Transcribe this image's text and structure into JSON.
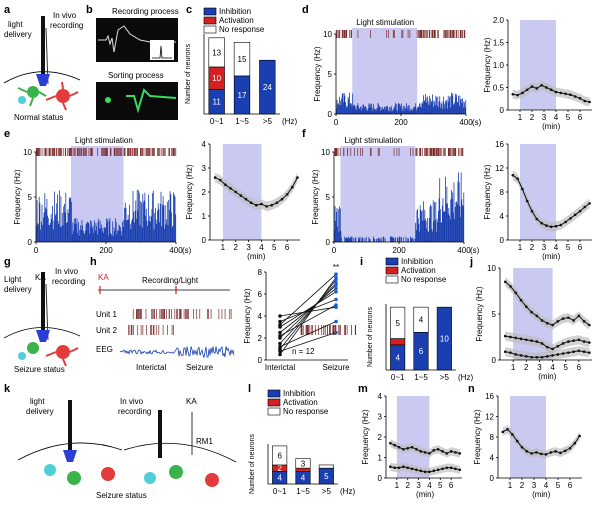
{
  "labels": {
    "panels": [
      "a",
      "b",
      "c",
      "d",
      "e",
      "f",
      "g",
      "h",
      "i",
      "j",
      "k",
      "l",
      "m",
      "n"
    ],
    "light_delivery": "light delivery",
    "light_delivery_g": "Light delivery",
    "in_vivo_recording": "In vivo recording",
    "in_vivo_recording_k": "In vivo recording",
    "normal_status": "Normal status",
    "seizure_status": "Seizure status",
    "ka": "KA",
    "rm1": "RM1",
    "recording_process": "Recording process",
    "sorting_process": "Sorting process",
    "light_stimulation": "Light stimulation",
    "recording_light": "Recording/Light",
    "unit1": "Unit 1",
    "unit2": "Unit 2",
    "eeg": "EEG",
    "interictal": "Interictal",
    "seizure": "Seizure",
    "n12": "n = 12",
    "sig": "**"
  },
  "colors": {
    "inhibition": "#1a3fb0",
    "activation": "#d32020",
    "no_response": "#ffffff",
    "light": "#c9c9f2",
    "trace": "#1a1a1a",
    "raster": "#7a2a2a",
    "bars": "#1a3fb0"
  },
  "chart_data": [
    {
      "panel": "c",
      "type": "bar",
      "stacked": true,
      "categories": [
        "0~1",
        "1~5",
        ">5"
      ],
      "unit": "(Hz)",
      "ylabel": "Number of neurons",
      "legend": [
        "Inhibition",
        "Activation",
        "No response"
      ],
      "series": [
        {
          "name": "Inhibition",
          "values": [
            11,
            17,
            24
          ]
        },
        {
          "name": "Activation",
          "values": [
            10,
            0,
            0
          ]
        },
        {
          "name": "No response",
          "values": [
            13,
            15,
            0
          ]
        }
      ],
      "value_labels": [
        [
          "11",
          "10",
          "13"
        ],
        [
          "17",
          "",
          "15"
        ],
        [
          "24",
          "",
          ""
        ]
      ]
    },
    {
      "panel": "d",
      "type": "bar",
      "title": "Light stimulation",
      "xlabel": "(s)",
      "ylabel": "Frequency (Hz)",
      "ylim": [
        0,
        10
      ],
      "xlim": [
        0,
        400
      ],
      "yticks": [
        0,
        5,
        10
      ],
      "xticks": [
        0,
        200,
        400
      ],
      "xtick_labels": [
        "0",
        "200",
        "400"
      ],
      "light_window": [
        50,
        250
      ]
    },
    {
      "panel": "d2",
      "type": "line",
      "xlabel": "(min)",
      "ylabel": "Frequency (Hz)",
      "ylim": [
        0,
        2.0
      ],
      "yticks": [
        0,
        0.5,
        1.0,
        1.5,
        2.0
      ],
      "ytick_labels": [
        "0",
        "0.5",
        "1.0",
        "1.5",
        "2.0"
      ],
      "xticks": [
        1,
        2,
        3,
        4,
        5,
        6
      ],
      "light_window": [
        1,
        4
      ],
      "x": [
        0.4,
        0.8,
        1.2,
        1.6,
        2.0,
        2.4,
        2.8,
        3.2,
        3.6,
        4.0,
        4.4,
        4.8,
        5.2,
        5.6,
        6.0,
        6.4,
        6.8
      ],
      "series": [
        {
          "values": [
            0.35,
            0.33,
            0.38,
            0.45,
            0.52,
            0.48,
            0.55,
            0.5,
            0.45,
            0.4,
            0.38,
            0.36,
            0.34,
            0.3,
            0.26,
            0.2,
            0.18
          ]
        }
      ]
    },
    {
      "panel": "e",
      "type": "bar",
      "title": "Light stimulation",
      "xlabel": "(s)",
      "ylabel": "Frequency (Hz)",
      "ylim": [
        0,
        10
      ],
      "xlim": [
        0,
        400
      ],
      "yticks": [
        0,
        5,
        10
      ],
      "xticks": [
        0,
        200,
        400
      ],
      "xtick_labels": [
        "0",
        "200",
        "400"
      ],
      "light_window": [
        100,
        250
      ]
    },
    {
      "panel": "e2",
      "type": "line",
      "xlabel": "(min)",
      "ylabel": "Frequency (Hz)",
      "ylim": [
        0,
        4
      ],
      "yticks": [
        0,
        1,
        2,
        3,
        4
      ],
      "xticks": [
        1,
        2,
        3,
        4,
        5,
        6
      ],
      "light_window": [
        1,
        4
      ],
      "x": [
        0.4,
        0.8,
        1.2,
        1.6,
        2.0,
        2.4,
        2.8,
        3.2,
        3.6,
        4.0,
        4.4,
        4.8,
        5.2,
        5.6,
        6.0,
        6.4,
        6.8
      ],
      "series": [
        {
          "values": [
            2.6,
            2.5,
            2.3,
            2.15,
            2.0,
            1.85,
            1.7,
            1.55,
            1.45,
            1.5,
            1.4,
            1.45,
            1.55,
            1.7,
            1.9,
            2.2,
            2.6
          ]
        }
      ]
    },
    {
      "panel": "f",
      "type": "bar",
      "title": "Light stimulation",
      "xlabel": "(s)",
      "ylabel": "Frequency (Hz)",
      "ylim": [
        0,
        10
      ],
      "xlim": [
        0,
        400
      ],
      "yticks": [
        0,
        5,
        10
      ],
      "xticks": [
        0,
        200,
        400
      ],
      "xtick_labels": [
        "0",
        "200",
        "400"
      ],
      "light_window": [
        20,
        250
      ]
    },
    {
      "panel": "f2",
      "type": "line",
      "xlabel": "(min)",
      "ylabel": "Frequency (Hz)",
      "ylim": [
        0,
        16
      ],
      "yticks": [
        0,
        4,
        8,
        12,
        16
      ],
      "xticks": [
        1,
        2,
        3,
        4,
        5,
        6
      ],
      "light_window": [
        1,
        4
      ],
      "x": [
        0.4,
        0.8,
        1.2,
        1.6,
        2.0,
        2.4,
        2.8,
        3.2,
        3.6,
        4.0,
        4.4,
        4.8,
        5.2,
        5.6,
        6.0,
        6.4,
        6.8
      ],
      "series": [
        {
          "values": [
            10.8,
            10.2,
            8.5,
            6.5,
            4.8,
            3.5,
            2.8,
            2.4,
            2.2,
            2.3,
            2.5,
            3.0,
            3.6,
            4.2,
            4.8,
            5.5,
            6.1
          ]
        }
      ]
    },
    {
      "panel": "h",
      "type": "line",
      "ylabel": "Frequency (Hz)",
      "ylim": [
        0,
        8
      ],
      "yticks": [
        0,
        2,
        4,
        6,
        8
      ],
      "categories": [
        "Interictal",
        "Seizure"
      ],
      "pairs": [
        [
          0.5,
          7.5
        ],
        [
          1.0,
          7.3
        ],
        [
          1.5,
          7.0
        ],
        [
          2.0,
          6.8
        ],
        [
          2.5,
          6.5
        ],
        [
          3.0,
          6.2
        ],
        [
          3.5,
          5.5
        ],
        [
          4.0,
          4.8
        ],
        [
          1.2,
          3.5
        ],
        [
          0.8,
          2.5
        ],
        [
          2.2,
          5.0
        ],
        [
          3.2,
          7.8
        ]
      ],
      "n": 12
    },
    {
      "panel": "i",
      "type": "bar",
      "stacked": true,
      "categories": [
        "0~1",
        "1~5",
        ">5"
      ],
      "unit": "(Hz)",
      "ylabel": "Number of neurons",
      "legend": [
        "Inhibition",
        "Activation",
        "No response"
      ],
      "series": [
        {
          "name": "Inhibition",
          "values": [
            4,
            6,
            10
          ]
        },
        {
          "name": "Activation",
          "values": [
            1,
            0,
            0
          ]
        },
        {
          "name": "No response",
          "values": [
            5,
            4,
            0
          ]
        }
      ],
      "value_labels": [
        [
          "4",
          "",
          "5"
        ],
        [
          "6",
          "",
          "4"
        ],
        [
          "10",
          "",
          ""
        ]
      ]
    },
    {
      "panel": "j",
      "type": "line",
      "xlabel": "(min)",
      "ylabel": "Frequency (Hz)",
      "ylim": [
        0,
        10
      ],
      "yticks": [
        0,
        5,
        10
      ],
      "xticks": [
        1,
        2,
        3,
        4,
        5,
        6
      ],
      "light_window": [
        1,
        4
      ],
      "x": [
        0.4,
        0.8,
        1.2,
        1.6,
        2.0,
        2.4,
        2.8,
        3.2,
        3.6,
        4.0,
        4.4,
        4.8,
        5.2,
        5.6,
        6.0,
        6.4,
        6.8
      ],
      "series": [
        {
          "values": [
            8.5,
            8.0,
            7.3,
            6.5,
            5.8,
            5.2,
            4.8,
            4.3,
            4.0,
            3.8,
            4.2,
            4.5,
            4.6,
            4.3,
            4.8,
            4.2,
            3.8
          ]
        },
        {
          "values": [
            2.6,
            2.5,
            2.4,
            2.3,
            2.2,
            2.1,
            2.0,
            1.8,
            1.4,
            1.2,
            1.5,
            1.8,
            2.0,
            2.1,
            2.2,
            2.0,
            1.9
          ]
        },
        {
          "values": [
            0.9,
            0.8,
            0.6,
            0.5,
            0.4,
            0.3,
            0.3,
            0.3,
            0.4,
            0.5,
            0.6,
            0.7,
            0.8,
            0.9,
            1.0,
            0.9,
            0.8
          ]
        }
      ]
    },
    {
      "panel": "l",
      "type": "bar",
      "stacked": true,
      "categories": [
        "0~1",
        "1~5",
        ">5"
      ],
      "unit": "(Hz)",
      "ylabel": "Number of neurons",
      "legend": [
        "Inhibition",
        "Activation",
        "No response"
      ],
      "series": [
        {
          "name": "Inhibition",
          "values": [
            4,
            4,
            5
          ]
        },
        {
          "name": "Activation",
          "values": [
            2,
            1,
            0
          ]
        },
        {
          "name": "No response",
          "values": [
            6,
            3,
            1
          ]
        }
      ],
      "value_labels": [
        [
          "4",
          "2",
          "6"
        ],
        [
          "4",
          "",
          "3"
        ],
        [
          "5",
          "",
          ""
        ]
      ]
    },
    {
      "panel": "m",
      "type": "line",
      "xlabel": "(min)",
      "ylabel": "Frequency (Hz)",
      "ylim": [
        0,
        4
      ],
      "yticks": [
        0,
        1,
        2,
        3,
        4
      ],
      "xticks": [
        1,
        2,
        3,
        4,
        5,
        6
      ],
      "light_window": [
        1,
        4
      ],
      "x": [
        0.4,
        0.8,
        1.2,
        1.6,
        2.0,
        2.4,
        2.8,
        3.2,
        3.6,
        4.0,
        4.4,
        4.8,
        5.2,
        5.6,
        6.0,
        6.4,
        6.8
      ],
      "series": [
        {
          "values": [
            1.7,
            1.6,
            1.5,
            1.4,
            1.45,
            1.5,
            1.4,
            1.3,
            1.25,
            1.2,
            1.35,
            1.4,
            1.3,
            1.2,
            1.3,
            1.25,
            1.2
          ]
        },
        {
          "values": [
            0.55,
            0.5,
            0.5,
            0.55,
            0.5,
            0.45,
            0.4,
            0.35,
            0.3,
            0.3,
            0.35,
            0.4,
            0.45,
            0.5,
            0.5,
            0.45,
            0.4
          ]
        }
      ]
    },
    {
      "panel": "n",
      "type": "line",
      "xlabel": "(min)",
      "ylabel": "Frequency (Hz)",
      "ylim": [
        0,
        16
      ],
      "yticks": [
        0,
        4,
        8,
        12,
        16
      ],
      "xticks": [
        1,
        2,
        3,
        4,
        5,
        6
      ],
      "light_window": [
        1,
        4
      ],
      "x": [
        0.4,
        0.8,
        1.2,
        1.6,
        2.0,
        2.4,
        2.8,
        3.2,
        3.6,
        4.0,
        4.4,
        4.8,
        5.2,
        5.6,
        6.0,
        6.4,
        6.8
      ],
      "series": [
        {
          "values": [
            9.0,
            9.5,
            8.5,
            7.2,
            6.0,
            5.2,
            4.8,
            5.0,
            4.7,
            4.6,
            5.0,
            5.2,
            4.9,
            5.3,
            5.8,
            6.8,
            8.2
          ]
        }
      ]
    }
  ]
}
